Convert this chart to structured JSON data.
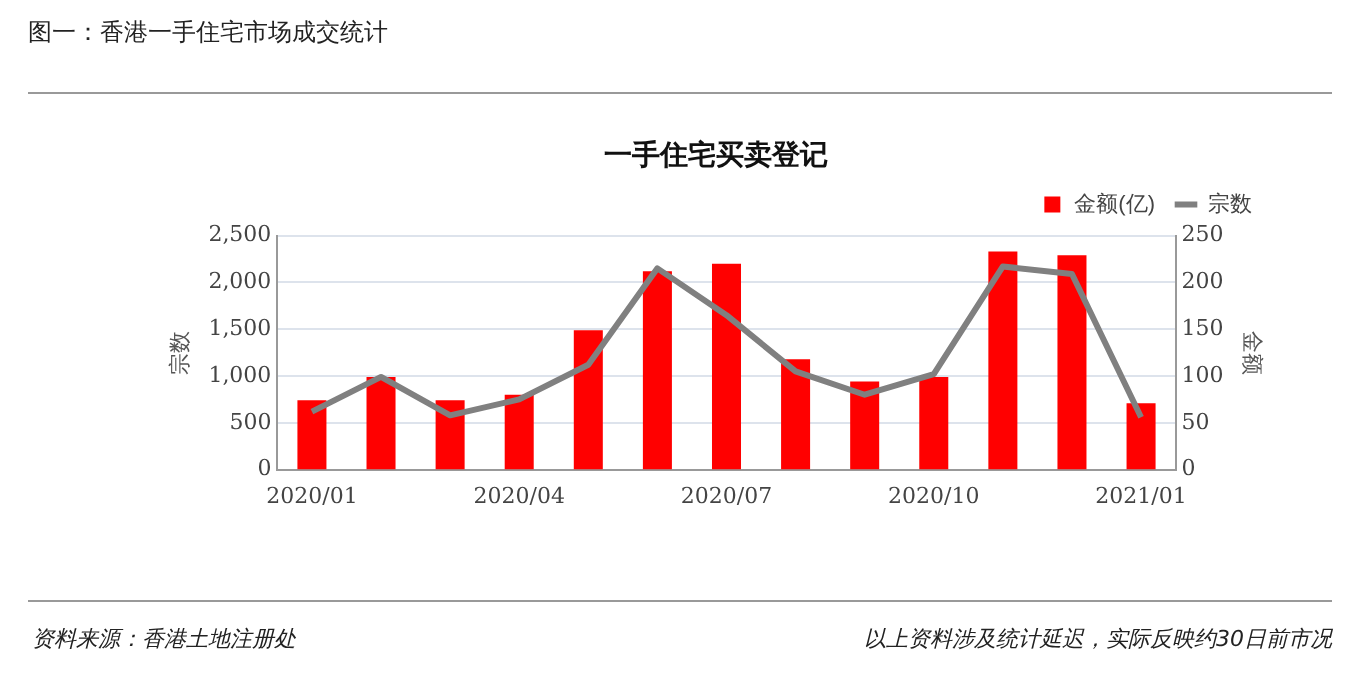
{
  "chart_data": {
    "type": "bar",
    "title": "图一：香港一手住宅市场成交统计",
    "subtitle": "一手住宅买卖登记",
    "ylabel": "宗数",
    "y2label": "金额",
    "categories": [
      "2020/01",
      null,
      null,
      "2020/04",
      null,
      null,
      "2020/07",
      null,
      null,
      "2020/10",
      null,
      null,
      "2021/01"
    ],
    "series": [
      {
        "name": "金额(亿)",
        "axis": "y2",
        "color": "#ff0000",
        "values": [
          74,
          99,
          74,
          80,
          149,
          212,
          220,
          118,
          94,
          99,
          233,
          229,
          71
        ]
      },
      {
        "name": "宗数",
        "type": "line",
        "axis": "y",
        "color": "#808080",
        "values": [
          620,
          990,
          580,
          750,
          1120,
          2150,
          1650,
          1050,
          800,
          1020,
          2170,
          2090,
          560
        ]
      }
    ],
    "ylim": [
      0,
      2500
    ],
    "yticks": [
      0,
      500,
      {
        "value": 1000,
        "label": "1,000"
      },
      {
        "value": 1500,
        "label": "1,500"
      },
      {
        "value": 2000,
        "label": "2,000"
      },
      {
        "value": 2500,
        "label": "2,500"
      }
    ],
    "y2lim": [
      0,
      250
    ],
    "y2ticks": [
      0,
      50,
      100,
      150,
      200,
      250
    ],
    "grid": "y",
    "legend": "top right",
    "marker": "none",
    "line_style": "solid",
    "annotations": [
      "资料来源：香港土地注册处",
      "以上资料涉及统计延迟，实际反映约30日前市况"
    ]
  }
}
